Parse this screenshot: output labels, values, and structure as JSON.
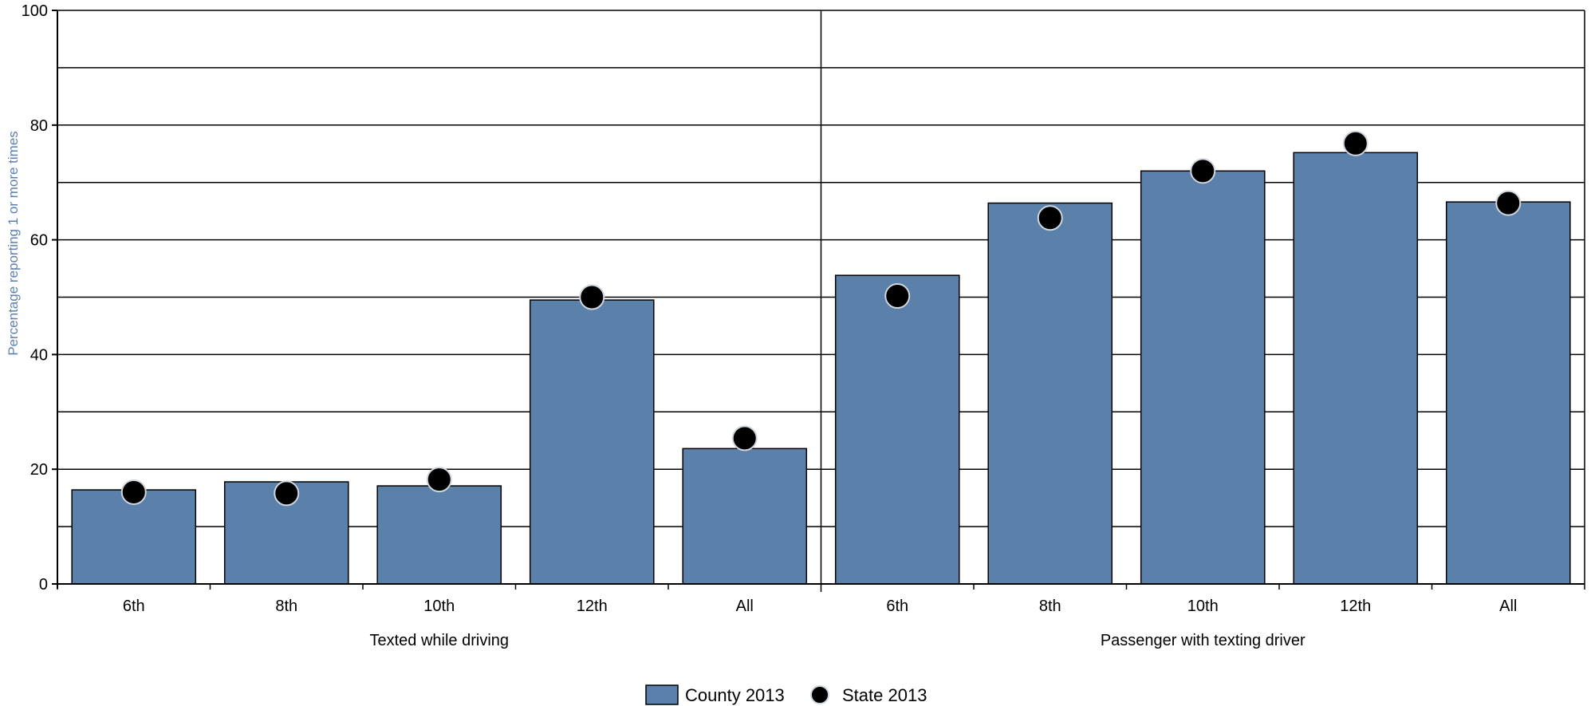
{
  "chart_data": {
    "type": "bar",
    "title": "",
    "ylabel": "Percentage reporting 1 or more times",
    "xlabel": "",
    "ylim": [
      0,
      100
    ],
    "y_ticks": [
      0,
      20,
      40,
      60,
      80,
      100
    ],
    "y_gridlines": [
      0,
      10,
      20,
      30,
      40,
      50,
      60,
      70,
      80,
      90,
      100
    ],
    "grid": true,
    "legend_position": "bottom-center",
    "groups": [
      {
        "label": "Texted while driving",
        "categories": [
          "6th",
          "8th",
          "10th",
          "12th",
          "All"
        ],
        "county": [
          16.4,
          17.8,
          17.1,
          49.5,
          23.6
        ],
        "state": [
          16.0,
          15.8,
          18.2,
          50.0,
          25.4
        ]
      },
      {
        "label": "Passenger with texting driver",
        "categories": [
          "6th",
          "8th",
          "10th",
          "12th",
          "All"
        ],
        "county": [
          53.8,
          66.4,
          72.0,
          75.2,
          66.6
        ],
        "state": [
          50.2,
          63.8,
          72.0,
          76.8,
          66.4
        ]
      }
    ],
    "series": [
      {
        "name": "County 2013",
        "kind": "bar",
        "color": "#5b80aa"
      },
      {
        "name": "State 2013",
        "kind": "marker",
        "color": "#000000"
      }
    ]
  }
}
